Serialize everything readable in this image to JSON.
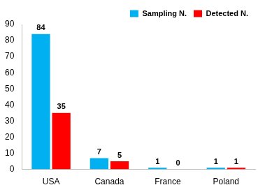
{
  "chart_data": {
    "type": "bar",
    "categories": [
      "USA",
      "Canada",
      "France",
      "Poland"
    ],
    "series": [
      {
        "name": "Sampling N.",
        "color": "#00b0f0",
        "values": [
          84,
          7,
          1,
          1
        ]
      },
      {
        "name": "Detected N.",
        "color": "#ff0000",
        "values": [
          35,
          5,
          0,
          1
        ]
      }
    ],
    "ylim": [
      0,
      90
    ],
    "yticks": [
      0,
      10,
      20,
      30,
      40,
      50,
      60,
      70,
      80,
      90
    ],
    "grid": false,
    "legend": "upper right",
    "data_labels": true
  }
}
